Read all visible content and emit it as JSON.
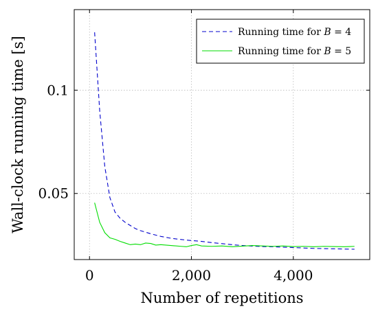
{
  "chart_data": {
    "type": "line",
    "xlabel": "Number of repetitions",
    "ylabel": "Wall-clock running time [s]",
    "xlim": [
      -300,
      5500
    ],
    "ylim": [
      0.018,
      0.139
    ],
    "xticks": [
      0,
      2000,
      4000
    ],
    "xtick_labels": [
      "0",
      "2,000",
      "4,000"
    ],
    "yticks": [
      0.05,
      0.1
    ],
    "ytick_labels": [
      "0.05",
      "0.1"
    ],
    "grid": true,
    "legend_position": "top-right",
    "series": [
      {
        "name": "Running time for B = 4",
        "legend_prefix": "Running time for ",
        "legend_var": "B",
        "legend_suffix": " = 4",
        "color": "#0000cc",
        "style": "dashed",
        "x": [
          100,
          200,
          300,
          400,
          500,
          600,
          700,
          800,
          900,
          1000,
          1200,
          1400,
          1600,
          1800,
          2000,
          2200,
          2400,
          2600,
          2800,
          3000,
          3200,
          3400,
          3600,
          3800,
          4000,
          4200,
          4400,
          4600,
          4800,
          5000,
          5200
        ],
        "values": [
          0.128,
          0.09,
          0.063,
          0.048,
          0.041,
          0.038,
          0.036,
          0.0345,
          0.033,
          0.032,
          0.0305,
          0.0292,
          0.0283,
          0.0277,
          0.0272,
          0.0268,
          0.0262,
          0.0257,
          0.0252,
          0.0248,
          0.0245,
          0.0243,
          0.0242,
          0.024,
          0.0238,
          0.0236,
          0.0234,
          0.0233,
          0.0232,
          0.0231,
          0.023
        ]
      },
      {
        "name": "Running time for B = 5",
        "legend_prefix": "Running time for ",
        "legend_var": "B",
        "legend_suffix": " = 5",
        "color": "#00dd00",
        "style": "solid",
        "x": [
          100,
          200,
          300,
          400,
          500,
          600,
          700,
          800,
          900,
          1000,
          1100,
          1200,
          1300,
          1400,
          1600,
          1800,
          1900,
          2000,
          2100,
          2200,
          2400,
          2600,
          2800,
          3000,
          3200,
          3400,
          3600,
          3800,
          4000,
          4200,
          4400,
          4600,
          4800,
          5000,
          5200
        ],
        "values": [
          0.0455,
          0.036,
          0.031,
          0.0285,
          0.0278,
          0.0268,
          0.026,
          0.0252,
          0.0255,
          0.0252,
          0.026,
          0.0258,
          0.025,
          0.0252,
          0.0248,
          0.0244,
          0.0242,
          0.0248,
          0.0252,
          0.0246,
          0.0244,
          0.0246,
          0.0242,
          0.0245,
          0.0248,
          0.0246,
          0.0244,
          0.0246,
          0.0243,
          0.0244,
          0.0242,
          0.0244,
          0.0243,
          0.0242,
          0.0244
        ]
      }
    ]
  }
}
